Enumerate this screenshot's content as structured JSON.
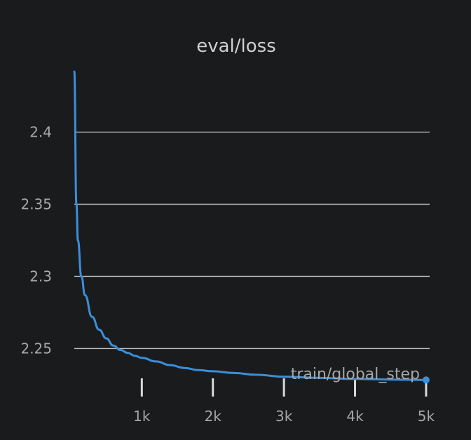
{
  "chart_data": {
    "type": "line",
    "title": "eval/loss",
    "xlabel": "train/global_step",
    "ylabel": "",
    "xlim": [
      50,
      5050
    ],
    "ylim": [
      2.223,
      2.443
    ],
    "x_ticks": [
      1000,
      2000,
      3000,
      4000,
      5000
    ],
    "x_tick_labels": [
      "1k",
      "2k",
      "3k",
      "4k",
      "5k"
    ],
    "y_ticks": [
      2.25,
      2.3,
      2.35,
      2.4
    ],
    "y_tick_labels": [
      "2.25",
      "2.3",
      "2.35",
      "2.4"
    ],
    "grid": "horizontal",
    "legend": "none",
    "series": [
      {
        "color": "#3b8fd9",
        "end_marker": true,
        "x": [
          50,
          80,
          100,
          150,
          200,
          300,
          400,
          500,
          600,
          700,
          800,
          900,
          1000,
          1200,
          1400,
          1600,
          1800,
          2000,
          2300,
          2600,
          3000,
          3500,
          4000,
          4500,
          5000
        ],
        "y": [
          2.442,
          2.35,
          2.325,
          2.3,
          2.287,
          2.272,
          2.263,
          2.257,
          2.252,
          2.249,
          2.247,
          2.245,
          2.2435,
          2.241,
          2.2385,
          2.2365,
          2.235,
          2.2342,
          2.233,
          2.2318,
          2.2305,
          2.2296,
          2.2289,
          2.2285,
          2.2282
        ]
      }
    ]
  }
}
